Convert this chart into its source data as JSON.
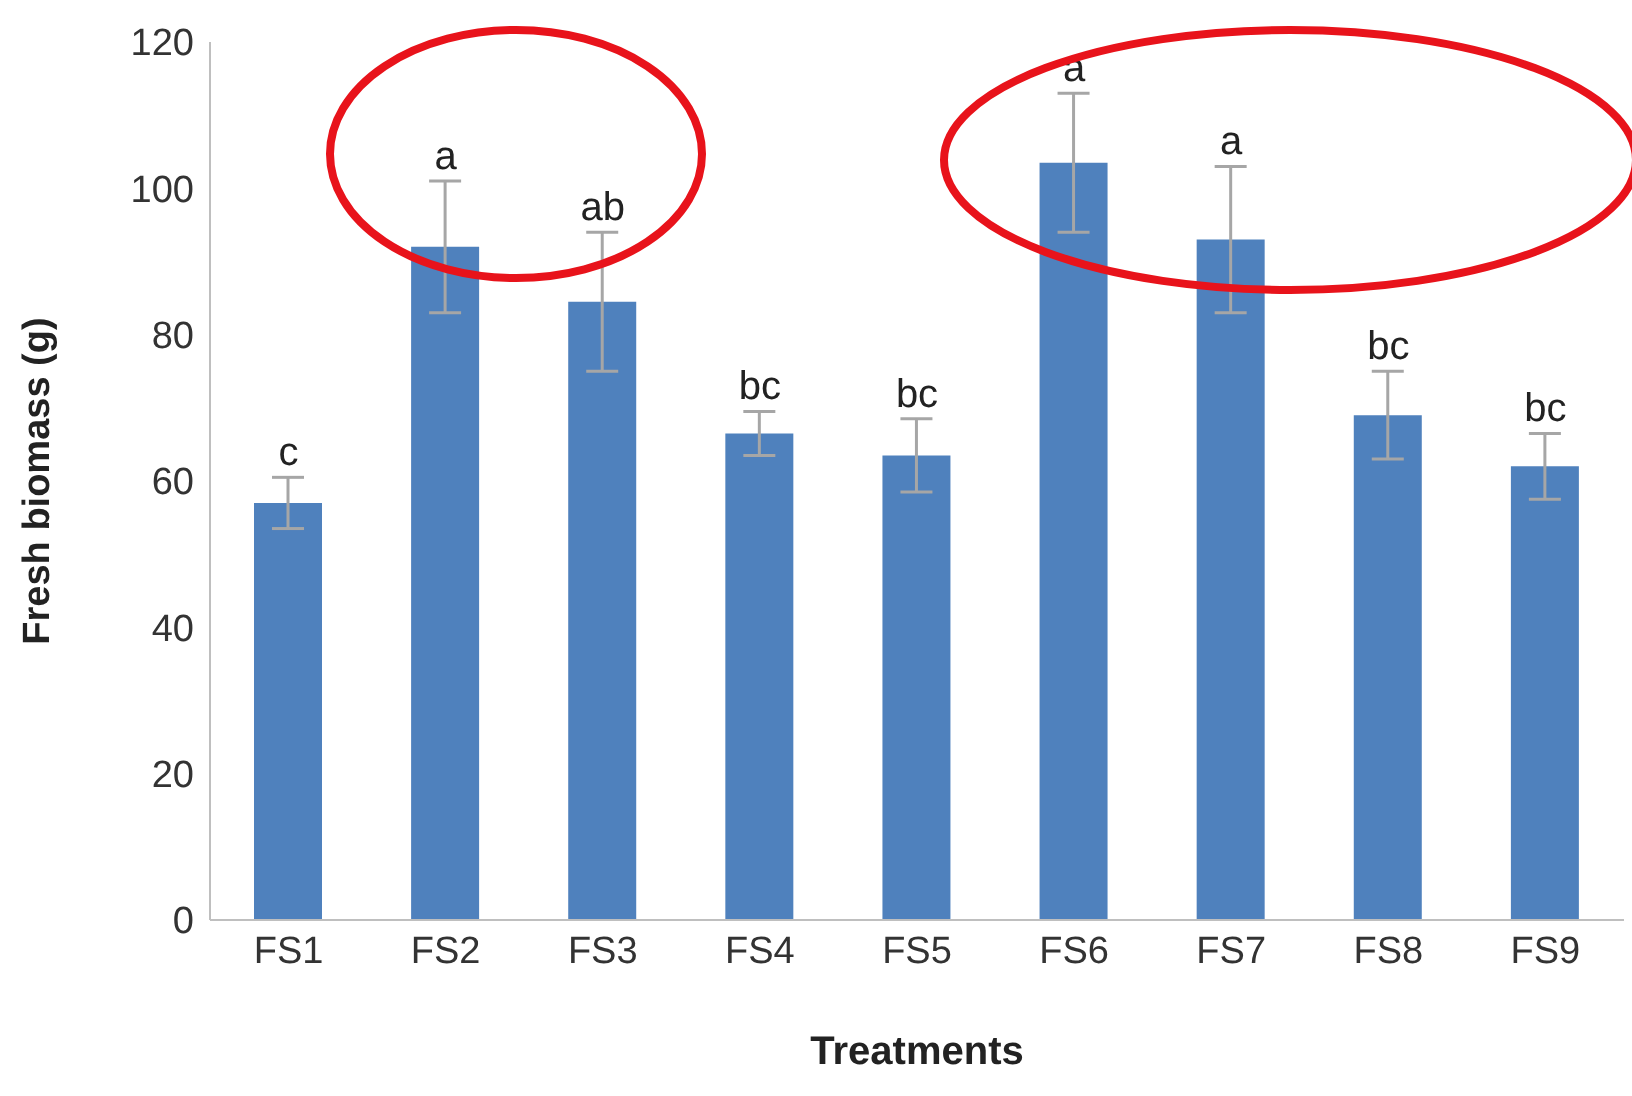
{
  "chart_data": {
    "type": "bar",
    "xlabel": "Treatments",
    "ylabel": "Fresh biomass (g)",
    "categories": [
      "FS1",
      "FS2",
      "FS3",
      "FS4",
      "FS5",
      "FS6",
      "FS7",
      "FS8",
      "FS9"
    ],
    "values": [
      57,
      92,
      84.5,
      66.5,
      63.5,
      103.5,
      93,
      69,
      62
    ],
    "errors": [
      3.5,
      9,
      9.5,
      3,
      5,
      9.5,
      10,
      6,
      4.5
    ],
    "color": "#4f81bd",
    "ylim": [
      0,
      120
    ],
    "yticks": [
      0,
      20,
      40,
      60,
      80,
      100,
      120
    ],
    "grid": false,
    "annotations": [
      {
        "text": "c",
        "x": "FS1",
        "y": 60.5
      },
      {
        "text": "a",
        "x": "FS2",
        "y": 101
      },
      {
        "text": "ab",
        "x": "FS3",
        "y": 94
      },
      {
        "text": "bc",
        "x": "FS4",
        "y": 69.5
      },
      {
        "text": "bc",
        "x": "FS5",
        "y": 68.5
      },
      {
        "text": "a",
        "x": "FS6",
        "y": 113
      },
      {
        "text": "a",
        "x": "FS7",
        "y": 103
      },
      {
        "text": "bc",
        "x": "FS8",
        "y": 75
      },
      {
        "text": "bc",
        "x": "FS9",
        "y": 66.5
      }
    ]
  }
}
